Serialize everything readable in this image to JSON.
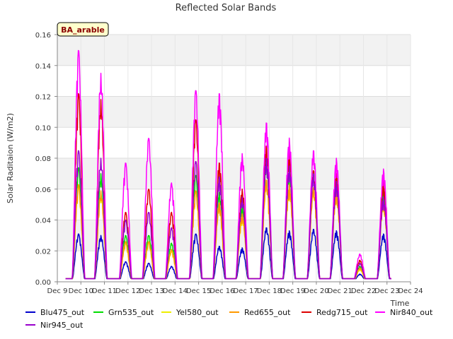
{
  "chart_data": {
    "type": "line",
    "title": "Reflected Solar Bands",
    "xlabel": "Time",
    "ylabel": "Solar Raditaion (W/m2)",
    "annotation": "BA_arable",
    "x_ticks": [
      "Dec 9",
      "Dec 10",
      "Dec 11",
      "Dec 12",
      "Dec 13",
      "Dec 14",
      "Dec 15",
      "Dec 16",
      "Dec 17",
      "Dec 18",
      "Dec 19",
      "Dec 20",
      "Dec 21",
      "Dec 22",
      "Dec 23",
      "Dec 24"
    ],
    "xlim": [
      9,
      24
    ],
    "ylim": [
      0,
      0.16
    ],
    "y_ticks": [
      "0.00",
      "0.02",
      "0.04",
      "0.06",
      "0.08",
      "0.10",
      "0.12",
      "0.14",
      "0.16"
    ],
    "y_tick_values": [
      0,
      0.02,
      0.04,
      0.06,
      0.08,
      0.1,
      0.12,
      0.14,
      0.16
    ],
    "grid": true,
    "legend_position": "bottom",
    "baseline": 0.002,
    "night_value": 0.002,
    "data_x_range": [
      9.35,
      23.2
    ],
    "day_centers": [
      9.9,
      10.85,
      11.9,
      12.88,
      13.85,
      14.88,
      15.88,
      16.85,
      17.88,
      18.85,
      19.88,
      20.85,
      21.85,
      22.85
    ],
    "series": [
      {
        "name": "Blu475_out",
        "color": "#0000cc",
        "peaks": [
          0.031,
          0.03,
          0.013,
          0.012,
          0.01,
          0.031,
          0.023,
          0.022,
          0.035,
          0.033,
          0.034,
          0.033,
          0.005,
          0.031
        ]
      },
      {
        "name": "Grn535_out",
        "color": "#00dd00",
        "peaks": [
          0.074,
          0.07,
          0.03,
          0.03,
          0.025,
          0.069,
          0.058,
          0.05,
          0.077,
          0.074,
          0.072,
          0.07,
          0.01,
          0.06
        ]
      },
      {
        "name": "Yel580_out",
        "color": "#eeee00",
        "peaks": [
          0.062,
          0.058,
          0.025,
          0.025,
          0.02,
          0.058,
          0.05,
          0.043,
          0.065,
          0.062,
          0.06,
          0.058,
          0.008,
          0.052
        ]
      },
      {
        "name": "Red655_out",
        "color": "#ff9900",
        "peaks": [
          0.063,
          0.059,
          0.026,
          0.026,
          0.021,
          0.059,
          0.051,
          0.044,
          0.066,
          0.063,
          0.061,
          0.059,
          0.009,
          0.053
        ]
      },
      {
        "name": "Redg715_out",
        "color": "#dd0000",
        "peaks": [
          0.122,
          0.118,
          0.045,
          0.06,
          0.045,
          0.105,
          0.077,
          0.06,
          0.088,
          0.084,
          0.072,
          0.07,
          0.014,
          0.065
        ]
      },
      {
        "name": "Nir840_out",
        "color": "#ff00ff",
        "peaks": [
          0.15,
          0.135,
          0.077,
          0.093,
          0.064,
          0.124,
          0.122,
          0.083,
          0.103,
          0.093,
          0.085,
          0.08,
          0.018,
          0.073
        ]
      },
      {
        "name": "Nir945_out",
        "color": "#9900cc",
        "peaks": [
          0.085,
          0.08,
          0.04,
          0.045,
          0.035,
          0.078,
          0.068,
          0.055,
          0.08,
          0.075,
          0.07,
          0.065,
          0.012,
          0.055
        ]
      }
    ]
  }
}
